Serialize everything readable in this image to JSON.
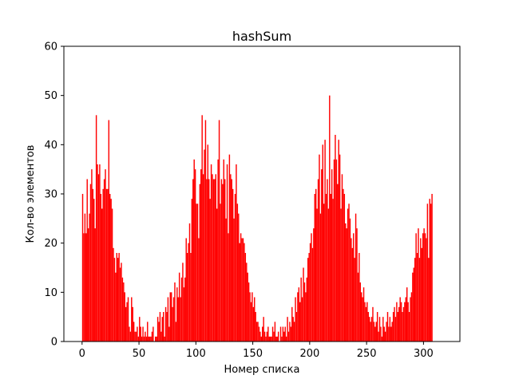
{
  "chart_data": {
    "type": "bar",
    "title": "hashSum",
    "xlabel": "Номер списка",
    "ylabel": "Кол-во элементов",
    "xlim": [
      -16,
      332
    ],
    "ylim": [
      0,
      60
    ],
    "xticks": [
      0,
      50,
      100,
      150,
      200,
      250,
      300
    ],
    "yticks": [
      0,
      10,
      20,
      30,
      40,
      50,
      60
    ],
    "grid": false,
    "bar_color": "#ff0000",
    "x_start": 0,
    "values": [
      30,
      22,
      26,
      22,
      33,
      23,
      26,
      32,
      35,
      31,
      29,
      23,
      46,
      36,
      34,
      36,
      30,
      27,
      31,
      33,
      35,
      31,
      31,
      45,
      30,
      29,
      27,
      19,
      17,
      14,
      18,
      17,
      18,
      15,
      16,
      13,
      12,
      10,
      7,
      8,
      9,
      3,
      2,
      9,
      7,
      4,
      2,
      2,
      3,
      1,
      5,
      3,
      1,
      3,
      1,
      2,
      1,
      4,
      1,
      1,
      1,
      2,
      3,
      0,
      1,
      1,
      5,
      4,
      6,
      2,
      5,
      6,
      1,
      7,
      6,
      9,
      3,
      10,
      10,
      7,
      9,
      12,
      4,
      11,
      9,
      14,
      9,
      13,
      16,
      11,
      13,
      21,
      18,
      20,
      24,
      18,
      29,
      33,
      37,
      35,
      28,
      28,
      21,
      32,
      35,
      46,
      34,
      39,
      45,
      33,
      40,
      33,
      29,
      36,
      34,
      33,
      33,
      34,
      27,
      37,
      45,
      28,
      33,
      32,
      37,
      33,
      25,
      36,
      22,
      38,
      34,
      33,
      31,
      25,
      30,
      36,
      28,
      26,
      20,
      22,
      21,
      21,
      20,
      18,
      16,
      14,
      12,
      10,
      8,
      10,
      7,
      9,
      6,
      4,
      4,
      3,
      2,
      1,
      3,
      5,
      2,
      1,
      2,
      3,
      1,
      1,
      1,
      3,
      2,
      4,
      1,
      1,
      2,
      0,
      3,
      1,
      3,
      2,
      3,
      1,
      5,
      2,
      4,
      3,
      7,
      5,
      4,
      9,
      6,
      10,
      11,
      8,
      13,
      9,
      15,
      12,
      10,
      13,
      17,
      18,
      20,
      22,
      19,
      23,
      30,
      31,
      27,
      33,
      38,
      26,
      35,
      40,
      28,
      41,
      30,
      33,
      27,
      50,
      30,
      35,
      29,
      37,
      42,
      37,
      32,
      41,
      38,
      27,
      34,
      31,
      30,
      24,
      23,
      27,
      28,
      25,
      21,
      19,
      22,
      17,
      26,
      23,
      14,
      18,
      12,
      10,
      9,
      11,
      8,
      7,
      8,
      6,
      5,
      4,
      5,
      7,
      4,
      3,
      4,
      6,
      2,
      5,
      3,
      1,
      5,
      3,
      2,
      4,
      6,
      3,
      5,
      3,
      4,
      6,
      7,
      5,
      8,
      6,
      7,
      9,
      8,
      6,
      7,
      8,
      9,
      11,
      8,
      6,
      9,
      10,
      14,
      15,
      17,
      22,
      18,
      23,
      17,
      21,
      19,
      22,
      23,
      22,
      21,
      28,
      17,
      29,
      28,
      30
    ]
  }
}
